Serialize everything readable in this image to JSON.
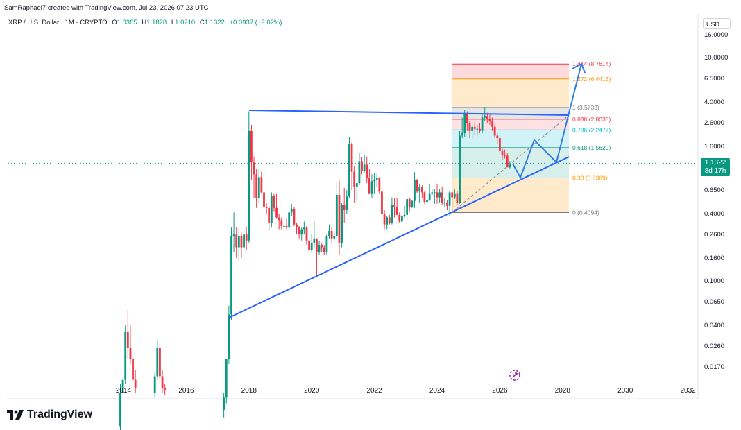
{
  "header": {
    "text": "SamRaphael7 created with TradingView.com, Jul 23, 2026 07:23 UTC"
  },
  "symbol": {
    "name": "XRP / U.S. Dollar · 1M · CRYPTO",
    "o_label": "O",
    "o_value": "1.0385",
    "h_label": "H",
    "h_value": "1.1828",
    "l_label": "L",
    "l_value": "1.0210",
    "c_label": "C",
    "c_value": "1.1322",
    "change": "+0.0937 (+9.02%)"
  },
  "currency": "USD",
  "last_price": {
    "value": "1.1322",
    "countdown": "8d 17h"
  },
  "logo": {
    "name": "TradingView",
    "icon": "tradingview-logo-icon"
  },
  "colors": {
    "up": "#089981",
    "down": "#f23645",
    "trend": "#2962ff",
    "projection": "#2f7de1"
  },
  "chart_data": {
    "type": "candlestick",
    "scale": "log",
    "title": "XRP / U.S. Dollar · 1M · CRYPTO",
    "y_ticks": [
      "16.0000",
      "10.0000",
      "6.5000",
      "4.0000",
      "2.6000",
      "1.6000",
      "1.1322",
      "0.6500",
      "0.4000",
      "0.2600",
      "0.1600",
      "0.1000",
      "0.0650",
      "0.0400",
      "0.0260",
      "0.0170"
    ],
    "x_ticks": [
      "2014",
      "2016",
      "2018",
      "2020",
      "2022",
      "2024",
      "2026",
      "2028",
      "2030",
      "2032"
    ],
    "fib_levels": [
      {
        "label": "1.414 (8.7614)",
        "price": 8.7614,
        "color": "#f23645"
      },
      {
        "label": "1.272 (6.4413)",
        "price": 6.4413,
        "color": "#ff9800"
      },
      {
        "label": "1 (3.5733)",
        "price": 3.5733,
        "color": "#787b86"
      },
      {
        "label": "0.888 (2.8035)",
        "price": 2.8035,
        "color": "#f23645"
      },
      {
        "label": "0.786 (2.2477)",
        "price": 2.2477,
        "color": "#00bcd4"
      },
      {
        "label": "0.618 (1.5620)",
        "price": 1.562,
        "color": "#089981"
      },
      {
        "label": "0.33 (0.8369)",
        "price": 0.8369,
        "color": "#ff9800"
      },
      {
        "label": "0 (0.4094)",
        "price": 0.4094,
        "color": "#787b86"
      }
    ],
    "candles": [
      {
        "t": 2013.9,
        "o": 0.005,
        "h": 0.012,
        "l": 0.004,
        "c": 0.01
      },
      {
        "t": 2013.98,
        "o": 0.01,
        "h": 0.012,
        "l": 0.0125,
        "c": 0.013
      },
      {
        "t": 2014.06,
        "o": 0.013,
        "h": 0.04,
        "l": 0.012,
        "c": 0.035
      },
      {
        "t": 2014.14,
        "o": 0.035,
        "h": 0.055,
        "l": 0.02,
        "c": 0.025
      },
      {
        "t": 2014.22,
        "o": 0.025,
        "h": 0.04,
        "l": 0.018,
        "c": 0.02
      },
      {
        "t": 2014.3,
        "o": 0.02,
        "h": 0.022,
        "l": 0.012,
        "c": 0.013
      },
      {
        "t": 2014.38,
        "o": 0.013,
        "h": 0.016,
        "l": 0.01,
        "c": 0.011
      },
      {
        "t": 2015.0,
        "o": 0.01,
        "h": 0.015,
        "l": 0.009,
        "c": 0.014
      },
      {
        "t": 2015.08,
        "o": 0.014,
        "h": 0.03,
        "l": 0.013,
        "c": 0.025
      },
      {
        "t": 2015.16,
        "o": 0.025,
        "h": 0.028,
        "l": 0.012,
        "c": 0.014
      },
      {
        "t": 2015.24,
        "o": 0.014,
        "h": 0.016,
        "l": 0.01,
        "c": 0.011
      },
      {
        "t": 2015.32,
        "o": 0.011,
        "h": 0.012,
        "l": 0.0095,
        "c": 0.0105
      },
      {
        "t": 2017.2,
        "o": 0.007,
        "h": 0.01,
        "l": 0.006,
        "c": 0.009
      },
      {
        "t": 2017.28,
        "o": 0.009,
        "h": 0.012,
        "l": 0.008,
        "c": 0.02
      },
      {
        "t": 2017.36,
        "o": 0.02,
        "h": 0.06,
        "l": 0.018,
        "c": 0.05
      },
      {
        "t": 2017.44,
        "o": 0.05,
        "h": 0.3,
        "l": 0.045,
        "c": 0.25
      },
      {
        "t": 2017.52,
        "o": 0.25,
        "h": 0.41,
        "l": 0.18,
        "c": 0.26
      },
      {
        "t": 2017.6,
        "o": 0.26,
        "h": 0.3,
        "l": 0.16,
        "c": 0.2
      },
      {
        "t": 2017.68,
        "o": 0.2,
        "h": 0.3,
        "l": 0.15,
        "c": 0.25
      },
      {
        "t": 2017.76,
        "o": 0.25,
        "h": 0.27,
        "l": 0.16,
        "c": 0.2
      },
      {
        "t": 2017.84,
        "o": 0.2,
        "h": 0.3,
        "l": 0.18,
        "c": 0.26
      },
      {
        "t": 2017.92,
        "o": 0.26,
        "h": 0.3,
        "l": 0.19,
        "c": 0.23
      },
      {
        "t": 2018.0,
        "o": 0.23,
        "h": 3.3,
        "l": 0.22,
        "c": 2.2
      },
      {
        "t": 2018.08,
        "o": 2.2,
        "h": 2.5,
        "l": 0.8,
        "c": 1.15
      },
      {
        "t": 2018.16,
        "o": 1.15,
        "h": 1.3,
        "l": 0.55,
        "c": 0.9
      },
      {
        "t": 2018.24,
        "o": 0.9,
        "h": 1.0,
        "l": 0.45,
        "c": 0.55
      },
      {
        "t": 2018.32,
        "o": 0.55,
        "h": 1.0,
        "l": 0.5,
        "c": 0.85
      },
      {
        "t": 2018.4,
        "o": 0.85,
        "h": 0.95,
        "l": 0.6,
        "c": 0.62
      },
      {
        "t": 2018.48,
        "o": 0.62,
        "h": 0.7,
        "l": 0.42,
        "c": 0.46
      },
      {
        "t": 2018.56,
        "o": 0.46,
        "h": 0.5,
        "l": 0.4,
        "c": 0.45
      },
      {
        "t": 2018.64,
        "o": 0.45,
        "h": 0.47,
        "l": 0.28,
        "c": 0.33
      },
      {
        "t": 2018.72,
        "o": 0.33,
        "h": 0.62,
        "l": 0.3,
        "c": 0.58
      },
      {
        "t": 2018.8,
        "o": 0.58,
        "h": 0.6,
        "l": 0.42,
        "c": 0.45
      },
      {
        "t": 2018.88,
        "o": 0.45,
        "h": 0.6,
        "l": 0.36,
        "c": 0.37
      },
      {
        "t": 2018.96,
        "o": 0.37,
        "h": 0.4,
        "l": 0.29,
        "c": 0.35
      },
      {
        "t": 2019.04,
        "o": 0.35,
        "h": 0.37,
        "l": 0.29,
        "c": 0.31
      },
      {
        "t": 2019.12,
        "o": 0.31,
        "h": 0.33,
        "l": 0.28,
        "c": 0.31
      },
      {
        "t": 2019.2,
        "o": 0.31,
        "h": 0.36,
        "l": 0.29,
        "c": 0.3
      },
      {
        "t": 2019.28,
        "o": 0.3,
        "h": 0.42,
        "l": 0.29,
        "c": 0.41
      },
      {
        "t": 2019.36,
        "o": 0.41,
        "h": 0.49,
        "l": 0.38,
        "c": 0.44
      },
      {
        "t": 2019.44,
        "o": 0.44,
        "h": 0.46,
        "l": 0.31,
        "c": 0.32
      },
      {
        "t": 2019.52,
        "o": 0.32,
        "h": 0.33,
        "l": 0.26,
        "c": 0.3
      },
      {
        "t": 2019.6,
        "o": 0.3,
        "h": 0.31,
        "l": 0.24,
        "c": 0.26
      },
      {
        "t": 2019.68,
        "o": 0.26,
        "h": 0.3,
        "l": 0.23,
        "c": 0.29
      },
      {
        "t": 2019.76,
        "o": 0.29,
        "h": 0.34,
        "l": 0.26,
        "c": 0.3
      },
      {
        "t": 2019.84,
        "o": 0.3,
        "h": 0.31,
        "l": 0.21,
        "c": 0.23
      },
      {
        "t": 2019.92,
        "o": 0.23,
        "h": 0.24,
        "l": 0.18,
        "c": 0.19
      },
      {
        "t": 2020.0,
        "o": 0.19,
        "h": 0.26,
        "l": 0.18,
        "c": 0.22
      },
      {
        "t": 2020.08,
        "o": 0.22,
        "h": 0.34,
        "l": 0.2,
        "c": 0.24
      },
      {
        "t": 2020.16,
        "o": 0.24,
        "h": 0.24,
        "l": 0.11,
        "c": 0.18
      },
      {
        "t": 2020.24,
        "o": 0.18,
        "h": 0.23,
        "l": 0.17,
        "c": 0.21
      },
      {
        "t": 2020.32,
        "o": 0.21,
        "h": 0.22,
        "l": 0.18,
        "c": 0.2
      },
      {
        "t": 2020.4,
        "o": 0.2,
        "h": 0.21,
        "l": 0.17,
        "c": 0.18
      },
      {
        "t": 2020.48,
        "o": 0.18,
        "h": 0.26,
        "l": 0.17,
        "c": 0.25
      },
      {
        "t": 2020.56,
        "o": 0.25,
        "h": 0.32,
        "l": 0.24,
        "c": 0.28
      },
      {
        "t": 2020.64,
        "o": 0.28,
        "h": 0.3,
        "l": 0.22,
        "c": 0.24
      },
      {
        "t": 2020.72,
        "o": 0.24,
        "h": 0.27,
        "l": 0.23,
        "c": 0.25
      },
      {
        "t": 2020.8,
        "o": 0.25,
        "h": 0.76,
        "l": 0.24,
        "c": 0.59
      },
      {
        "t": 2020.88,
        "o": 0.59,
        "h": 0.79,
        "l": 0.17,
        "c": 0.22
      },
      {
        "t": 2020.96,
        "o": 0.22,
        "h": 0.5,
        "l": 0.2,
        "c": 0.48
      },
      {
        "t": 2021.04,
        "o": 0.48,
        "h": 0.68,
        "l": 0.33,
        "c": 0.43
      },
      {
        "t": 2021.12,
        "o": 0.43,
        "h": 0.65,
        "l": 0.4,
        "c": 0.57
      },
      {
        "t": 2021.2,
        "o": 0.57,
        "h": 1.96,
        "l": 0.55,
        "c": 1.7
      },
      {
        "t": 2021.28,
        "o": 1.7,
        "h": 1.75,
        "l": 0.65,
        "c": 0.95
      },
      {
        "t": 2021.36,
        "o": 0.95,
        "h": 1.06,
        "l": 0.5,
        "c": 0.7
      },
      {
        "t": 2021.44,
        "o": 0.7,
        "h": 0.75,
        "l": 0.51,
        "c": 0.75
      },
      {
        "t": 2021.52,
        "o": 0.75,
        "h": 1.4,
        "l": 0.72,
        "c": 1.18
      },
      {
        "t": 2021.6,
        "o": 1.18,
        "h": 1.28,
        "l": 0.9,
        "c": 0.96
      },
      {
        "t": 2021.68,
        "o": 0.96,
        "h": 1.35,
        "l": 0.92,
        "c": 1.1
      },
      {
        "t": 2021.76,
        "o": 1.1,
        "h": 1.3,
        "l": 0.75,
        "c": 0.83
      },
      {
        "t": 2021.84,
        "o": 0.83,
        "h": 1.0,
        "l": 0.6,
        "c": 0.6
      },
      {
        "t": 2021.92,
        "o": 0.6,
        "h": 0.9,
        "l": 0.55,
        "c": 0.78
      },
      {
        "t": 2022.0,
        "o": 0.78,
        "h": 0.92,
        "l": 0.6,
        "c": 0.8
      },
      {
        "t": 2022.08,
        "o": 0.8,
        "h": 0.91,
        "l": 0.7,
        "c": 0.83
      },
      {
        "t": 2022.16,
        "o": 0.83,
        "h": 0.85,
        "l": 0.6,
        "c": 0.63
      },
      {
        "t": 2022.24,
        "o": 0.63,
        "h": 0.65,
        "l": 0.33,
        "c": 0.4
      },
      {
        "t": 2022.32,
        "o": 0.4,
        "h": 0.43,
        "l": 0.29,
        "c": 0.32
      },
      {
        "t": 2022.4,
        "o": 0.32,
        "h": 0.38,
        "l": 0.29,
        "c": 0.37
      },
      {
        "t": 2022.48,
        "o": 0.37,
        "h": 0.39,
        "l": 0.32,
        "c": 0.33
      },
      {
        "t": 2022.56,
        "o": 0.33,
        "h": 0.56,
        "l": 0.32,
        "c": 0.48
      },
      {
        "t": 2022.64,
        "o": 0.48,
        "h": 0.55,
        "l": 0.37,
        "c": 0.46
      },
      {
        "t": 2022.72,
        "o": 0.46,
        "h": 0.55,
        "l": 0.4,
        "c": 0.39
      },
      {
        "t": 2022.8,
        "o": 0.39,
        "h": 0.41,
        "l": 0.33,
        "c": 0.34
      },
      {
        "t": 2022.88,
        "o": 0.34,
        "h": 0.41,
        "l": 0.33,
        "c": 0.38
      },
      {
        "t": 2022.96,
        "o": 0.38,
        "h": 0.47,
        "l": 0.37,
        "c": 0.39
      },
      {
        "t": 2023.04,
        "o": 0.39,
        "h": 0.58,
        "l": 0.35,
        "c": 0.54
      },
      {
        "t": 2023.12,
        "o": 0.54,
        "h": 0.56,
        "l": 0.42,
        "c": 0.46
      },
      {
        "t": 2023.2,
        "o": 0.46,
        "h": 0.53,
        "l": 0.45,
        "c": 0.52
      },
      {
        "t": 2023.28,
        "o": 0.52,
        "h": 0.94,
        "l": 0.45,
        "c": 0.8
      },
      {
        "t": 2023.36,
        "o": 0.8,
        "h": 0.82,
        "l": 0.61,
        "c": 0.63
      },
      {
        "t": 2023.44,
        "o": 0.63,
        "h": 0.74,
        "l": 0.5,
        "c": 0.69
      },
      {
        "t": 2023.52,
        "o": 0.69,
        "h": 0.72,
        "l": 0.55,
        "c": 0.62
      },
      {
        "t": 2023.6,
        "o": 0.62,
        "h": 0.64,
        "l": 0.49,
        "c": 0.51
      },
      {
        "t": 2023.68,
        "o": 0.51,
        "h": 0.56,
        "l": 0.5,
        "c": 0.53
      },
      {
        "t": 2023.76,
        "o": 0.53,
        "h": 0.74,
        "l": 0.52,
        "c": 0.6
      },
      {
        "t": 2023.84,
        "o": 0.6,
        "h": 0.66,
        "l": 0.59,
        "c": 0.62
      },
      {
        "t": 2023.92,
        "o": 0.62,
        "h": 0.66,
        "l": 0.49,
        "c": 0.62
      },
      {
        "t": 2024.0,
        "o": 0.62,
        "h": 0.74,
        "l": 0.49,
        "c": 0.56
      },
      {
        "t": 2024.08,
        "o": 0.56,
        "h": 0.67,
        "l": 0.5,
        "c": 0.62
      },
      {
        "t": 2024.16,
        "o": 0.62,
        "h": 0.7,
        "l": 0.48,
        "c": 0.5
      },
      {
        "t": 2024.24,
        "o": 0.5,
        "h": 0.55,
        "l": 0.46,
        "c": 0.5
      },
      {
        "t": 2024.32,
        "o": 0.5,
        "h": 0.53,
        "l": 0.43,
        "c": 0.47
      },
      {
        "t": 2024.4,
        "o": 0.47,
        "h": 0.65,
        "l": 0.38,
        "c": 0.62
      },
      {
        "t": 2024.48,
        "o": 0.62,
        "h": 0.64,
        "l": 0.41,
        "c": 0.56
      },
      {
        "t": 2024.56,
        "o": 0.56,
        "h": 0.66,
        "l": 0.54,
        "c": 0.6
      },
      {
        "t": 2024.64,
        "o": 0.6,
        "h": 0.64,
        "l": 0.48,
        "c": 0.5
      },
      {
        "t": 2024.72,
        "o": 0.5,
        "h": 2.2,
        "l": 0.49,
        "c": 2.0
      },
      {
        "t": 2024.8,
        "o": 2.0,
        "h": 2.9,
        "l": 1.9,
        "c": 2.1
      },
      {
        "t": 2024.88,
        "o": 2.1,
        "h": 3.4,
        "l": 1.95,
        "c": 3.1
      },
      {
        "t": 2024.96,
        "o": 3.1,
        "h": 3.3,
        "l": 2.2,
        "c": 2.6
      },
      {
        "t": 2025.04,
        "o": 2.6,
        "h": 2.7,
        "l": 1.9,
        "c": 2.2
      },
      {
        "t": 2025.12,
        "o": 2.2,
        "h": 2.6,
        "l": 1.9,
        "c": 2.4
      },
      {
        "t": 2025.2,
        "o": 2.4,
        "h": 2.7,
        "l": 2.0,
        "c": 2.3
      },
      {
        "t": 2025.28,
        "o": 2.3,
        "h": 2.5,
        "l": 2.0,
        "c": 2.3
      },
      {
        "t": 2025.36,
        "o": 2.3,
        "h": 2.6,
        "l": 2.1,
        "c": 2.2
      },
      {
        "t": 2025.44,
        "o": 2.2,
        "h": 3.1,
        "l": 2.1,
        "c": 2.9
      },
      {
        "t": 2025.52,
        "o": 2.9,
        "h": 3.6,
        "l": 2.7,
        "c": 3.0
      },
      {
        "t": 2025.6,
        "o": 3.0,
        "h": 3.2,
        "l": 2.6,
        "c": 2.8
      },
      {
        "t": 2025.68,
        "o": 2.8,
        "h": 3.1,
        "l": 2.5,
        "c": 2.7
      },
      {
        "t": 2025.76,
        "o": 2.7,
        "h": 2.9,
        "l": 2.2,
        "c": 2.4
      },
      {
        "t": 2025.84,
        "o": 2.4,
        "h": 2.6,
        "l": 1.9,
        "c": 2.0
      },
      {
        "t": 2025.92,
        "o": 2.0,
        "h": 2.1,
        "l": 1.7,
        "c": 1.9
      },
      {
        "t": 2026.0,
        "o": 1.9,
        "h": 2.0,
        "l": 1.4,
        "c": 1.45
      },
      {
        "t": 2026.08,
        "o": 1.45,
        "h": 1.55,
        "l": 1.2,
        "c": 1.35
      },
      {
        "t": 2026.16,
        "o": 1.35,
        "h": 1.5,
        "l": 1.25,
        "c": 1.32
      },
      {
        "t": 2026.24,
        "o": 1.32,
        "h": 1.4,
        "l": 1.05,
        "c": 1.04
      },
      {
        "t": 2026.32,
        "o": 1.04,
        "h": 1.18,
        "l": 1.02,
        "c": 1.13
      }
    ]
  }
}
